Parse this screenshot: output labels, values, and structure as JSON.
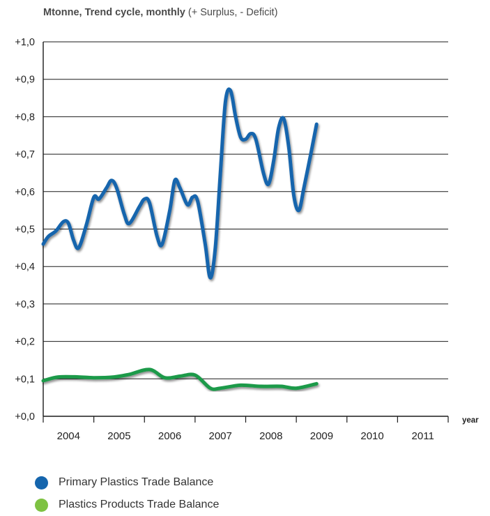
{
  "title": {
    "bold_part": "Mtonne, Trend cycle, monthly",
    "normal_part": "(+ Surplus, - Deficit)"
  },
  "chart_data": {
    "type": "line",
    "title": "Mtonne, Trend cycle, monthly (+ Surplus, - Deficit)",
    "xlabel": "year",
    "ylabel": "",
    "ylim": [
      0.0,
      1.0
    ],
    "y_ticks": [
      "+0,0",
      "+0,1",
      "+0,2",
      "+0,3",
      "+0,4",
      "+0,5",
      "+0,6",
      "+0,7",
      "+0,8",
      "+0,9",
      "+1,0"
    ],
    "x_tick_labels": [
      "2004",
      "2005",
      "2006",
      "2007",
      "2008",
      "2009",
      "2010",
      "2011"
    ],
    "xlim": [
      2003.5,
      2011.5
    ],
    "grid": true,
    "legend_position": "bottom-left",
    "series": [
      {
        "name": "Primary Plastics Trade Balance",
        "color": "#1565ad",
        "points": [
          [
            2003.5,
            0.46
          ],
          [
            2003.6,
            0.48
          ],
          [
            2003.75,
            0.495
          ],
          [
            2003.9,
            0.52
          ],
          [
            2004.0,
            0.515
          ],
          [
            2004.1,
            0.47
          ],
          [
            2004.2,
            0.45
          ],
          [
            2004.35,
            0.51
          ],
          [
            2004.5,
            0.585
          ],
          [
            2004.6,
            0.58
          ],
          [
            2004.75,
            0.61
          ],
          [
            2004.85,
            0.63
          ],
          [
            2004.95,
            0.61
          ],
          [
            2005.1,
            0.54
          ],
          [
            2005.2,
            0.515
          ],
          [
            2005.4,
            0.56
          ],
          [
            2005.5,
            0.58
          ],
          [
            2005.6,
            0.57
          ],
          [
            2005.75,
            0.48
          ],
          [
            2005.85,
            0.46
          ],
          [
            2006.0,
            0.55
          ],
          [
            2006.1,
            0.63
          ],
          [
            2006.2,
            0.61
          ],
          [
            2006.35,
            0.565
          ],
          [
            2006.45,
            0.585
          ],
          [
            2006.55,
            0.575
          ],
          [
            2006.7,
            0.46
          ],
          [
            2006.8,
            0.37
          ],
          [
            2006.9,
            0.45
          ],
          [
            2007.0,
            0.65
          ],
          [
            2007.1,
            0.84
          ],
          [
            2007.2,
            0.87
          ],
          [
            2007.3,
            0.8
          ],
          [
            2007.4,
            0.745
          ],
          [
            2007.5,
            0.74
          ],
          [
            2007.6,
            0.755
          ],
          [
            2007.7,
            0.74
          ],
          [
            2007.85,
            0.65
          ],
          [
            2007.95,
            0.62
          ],
          [
            2008.05,
            0.68
          ],
          [
            2008.15,
            0.77
          ],
          [
            2008.25,
            0.795
          ],
          [
            2008.35,
            0.72
          ],
          [
            2008.45,
            0.59
          ],
          [
            2008.55,
            0.55
          ],
          [
            2008.65,
            0.61
          ],
          [
            2008.8,
            0.71
          ],
          [
            2008.9,
            0.78
          ]
        ]
      },
      {
        "name": "Plastics Products Trade Balance",
        "color": "#1a9a4a",
        "points": [
          [
            2003.5,
            0.095
          ],
          [
            2003.8,
            0.105
          ],
          [
            2004.2,
            0.105
          ],
          [
            2004.5,
            0.103
          ],
          [
            2004.9,
            0.105
          ],
          [
            2005.2,
            0.112
          ],
          [
            2005.6,
            0.125
          ],
          [
            2005.9,
            0.103
          ],
          [
            2006.2,
            0.107
          ],
          [
            2006.5,
            0.11
          ],
          [
            2006.8,
            0.075
          ],
          [
            2007.0,
            0.075
          ],
          [
            2007.4,
            0.083
          ],
          [
            2007.8,
            0.08
          ],
          [
            2008.2,
            0.08
          ],
          [
            2008.5,
            0.075
          ],
          [
            2008.9,
            0.087
          ]
        ]
      }
    ]
  },
  "legend": {
    "items": [
      {
        "label": "Primary Plastics Trade Balance",
        "color": "#1565ad"
      },
      {
        "label": "Plastics Products Trade Balance",
        "color": "#7ec242"
      }
    ]
  }
}
